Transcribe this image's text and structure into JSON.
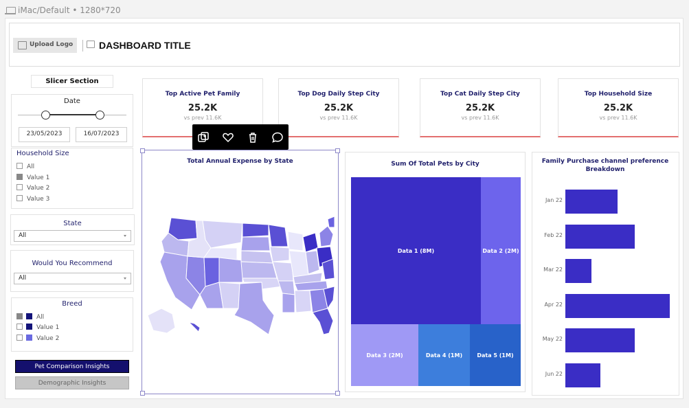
{
  "device": {
    "label": "iMac/Default • 1280*720"
  },
  "header": {
    "upload_label": "Upload Logo",
    "title": "DASHBOARD TITLE"
  },
  "slicer": {
    "title": "Slicer Section",
    "date": {
      "label": "Date",
      "start": "23/05/2023",
      "end": "16/07/2023"
    },
    "household": {
      "label": "Household Size",
      "options": [
        "All",
        "Value 1",
        "Value 2",
        "Value 3"
      ]
    },
    "state": {
      "label": "State",
      "value": "All"
    },
    "recommend": {
      "label": "Would You Recommend",
      "value": "All"
    },
    "breed": {
      "label": "Breed",
      "options": [
        "All",
        "Value 1",
        "Value 2"
      ]
    }
  },
  "buttons": {
    "primary": "Pet Comparison Insights",
    "secondary": "Demographic Insights"
  },
  "kpis": [
    {
      "title": "Top Active Pet Family",
      "value": "25.2K",
      "compare": "vs prev 11.6K"
    },
    {
      "title": "Top Dog Daily Step City",
      "value": "25.2K",
      "compare": "vs prev 11.6K"
    },
    {
      "title": "Top Cat Daily Step City",
      "value": "25.2K",
      "compare": "vs prev 11.6K"
    },
    {
      "title": "Top Household Size",
      "value": "25.2K",
      "compare": "vs prev 11.6K"
    }
  ],
  "map": {
    "title": "Total Annual Expense by State"
  },
  "treemap": {
    "title": "Sum Of Total Pets by City",
    "cells": [
      {
        "label": "Data 1 (8M)",
        "color": "#3a2dc5"
      },
      {
        "label": "Data 2 (2M)",
        "color": "#6d64ec"
      },
      {
        "label": "Data 3 (2M)",
        "color": "#9f99f5"
      },
      {
        "label": "Data 4 (1M)",
        "color": "#3d7edc"
      },
      {
        "label": "Data 5 (1M)",
        "color": "#2862c9"
      }
    ]
  },
  "chart_data": {
    "type": "bar",
    "title": "Family Purchase channel preference Breakdown",
    "categories": [
      "Jan 22",
      "Feb 22",
      "Mar 22",
      "Apr 22",
      "May 22",
      "Jun 22"
    ],
    "values": [
      77,
      102,
      38,
      153,
      102,
      51
    ],
    "orientation": "horizontal",
    "xlim": [
      0,
      153
    ]
  }
}
